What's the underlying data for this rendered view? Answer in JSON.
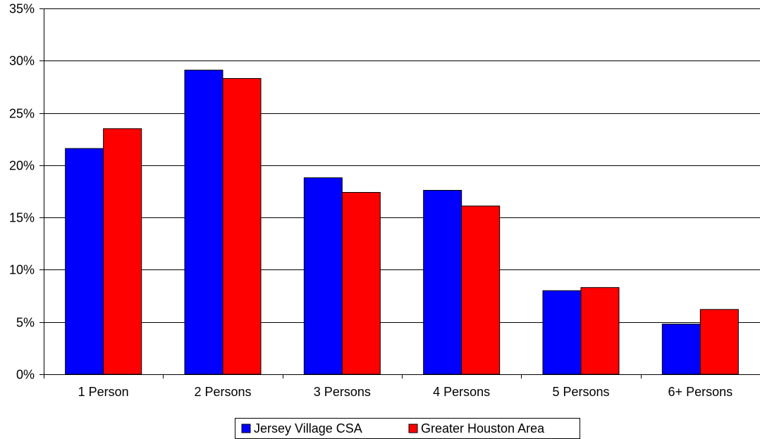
{
  "chart_data": {
    "type": "bar",
    "categories": [
      "1 Person",
      "2 Persons",
      "3 Persons",
      "4 Persons",
      "5 Persons",
      "6+ Persons"
    ],
    "series": [
      {
        "name": "Jersey Village CSA",
        "color": "#0000FF",
        "values": [
          21.6,
          29.1,
          18.8,
          17.6,
          8.0,
          4.8
        ]
      },
      {
        "name": "Greater Houston Area",
        "color": "#FF0000",
        "values": [
          23.5,
          28.3,
          17.4,
          16.1,
          8.3,
          6.2
        ]
      }
    ],
    "y_ticks": [
      "0%",
      "5%",
      "10%",
      "15%",
      "20%",
      "25%",
      "30%",
      "35%"
    ],
    "ylim": [
      0,
      35
    ],
    "y_unit": "%",
    "grid": true,
    "legend_position": "bottom-center",
    "title": "",
    "xlabel": "",
    "ylabel": ""
  }
}
